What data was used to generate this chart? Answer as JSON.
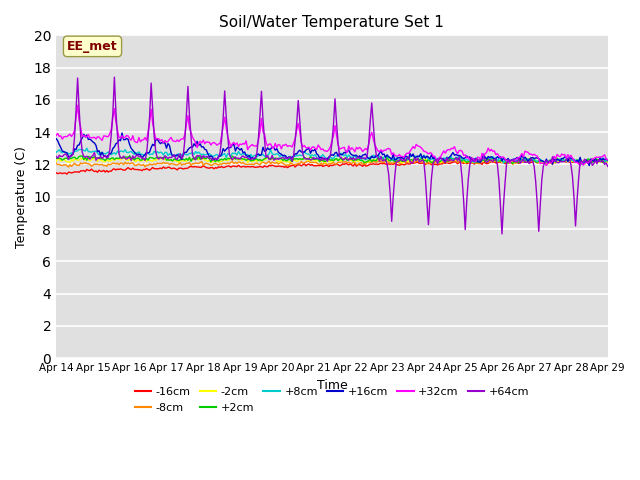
{
  "title": "Soil/Water Temperature Set 1",
  "xlabel": "Time",
  "ylabel": "Temperature (C)",
  "ylim": [
    0,
    20
  ],
  "yticks": [
    0,
    2,
    4,
    6,
    8,
    10,
    12,
    14,
    16,
    18,
    20
  ],
  "annotation_text": "EE_met",
  "annotation_color": "#800000",
  "annotation_bg": "#ffffcc",
  "bg_plot": "#e0e0e0",
  "bg_fig": "#ffffff",
  "series_order": [
    "-16cm",
    "-8cm",
    "-2cm",
    "+2cm",
    "+8cm",
    "+16cm",
    "+32cm",
    "+64cm"
  ],
  "series_colors": {
    "-16cm": "#ff0000",
    "-8cm": "#ff8800",
    "-2cm": "#ffff00",
    "+2cm": "#00cc00",
    "+8cm": "#00cccc",
    "+16cm": "#0000cc",
    "+32cm": "#ff00ff",
    "+64cm": "#9900cc"
  },
  "n_points": 361,
  "xtick_labels": [
    "Apr 14",
    "Apr 15",
    "Apr 16",
    "Apr 17",
    "Apr 18",
    "Apr 19",
    "Apr 20",
    "Apr 21",
    "Apr 22",
    "Apr 23",
    "Apr 24",
    "Apr 25",
    "Apr 26",
    "Apr 27",
    "Apr 28",
    "Apr 29"
  ],
  "xtick_positions": [
    0,
    24,
    48,
    72,
    96,
    120,
    144,
    168,
    192,
    216,
    240,
    264,
    288,
    312,
    336,
    360
  ]
}
